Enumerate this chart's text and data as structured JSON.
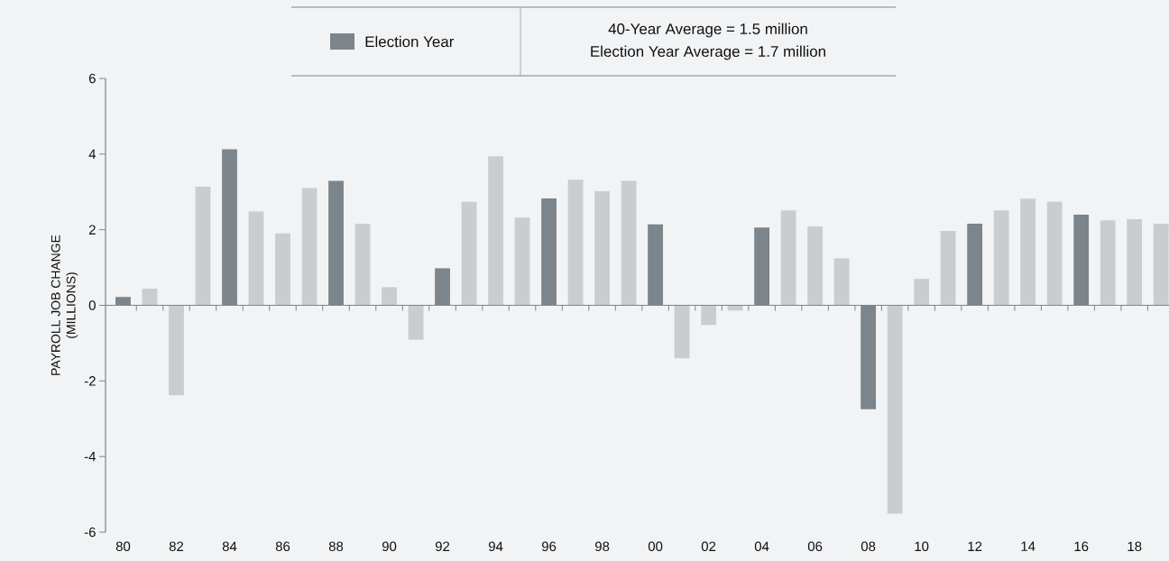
{
  "chart_data": {
    "type": "bar",
    "ylabel": "PAYROLL JOB CHANGE (MILLIONS)",
    "categories": [
      "80",
      null,
      "82",
      null,
      "84",
      null,
      "86",
      null,
      "88",
      null,
      "90",
      null,
      "92",
      null,
      "94",
      null,
      "96",
      null,
      "98",
      null,
      "00",
      null,
      "02",
      null,
      "04",
      null,
      "06",
      null,
      "08",
      null,
      "10",
      null,
      "12",
      null,
      "14",
      null,
      "16",
      null,
      "18",
      null
    ],
    "series": [
      {
        "name": "Election Year",
        "color": "#7b858b",
        "values": [
          0.22,
          null,
          null,
          null,
          4.13,
          null,
          null,
          null,
          3.29,
          null,
          null,
          null,
          0.98,
          null,
          null,
          null,
          2.83,
          null,
          null,
          null,
          2.14,
          null,
          null,
          null,
          2.06,
          null,
          null,
          null,
          -2.75,
          null,
          null,
          null,
          2.16,
          null,
          null,
          null,
          2.4,
          null,
          null,
          null
        ]
      },
      {
        "color": "#cacdd0",
        "values": [
          null,
          0.44,
          -2.38,
          3.14,
          null,
          2.48,
          1.9,
          3.1,
          null,
          2.16,
          0.48,
          -0.91,
          null,
          2.74,
          3.94,
          2.32,
          null,
          3.32,
          3.02,
          3.29,
          null,
          -1.4,
          -0.52,
          -0.14,
          null,
          2.51,
          2.09,
          1.24,
          null,
          -5.51,
          0.7,
          1.97,
          null,
          2.51,
          2.82,
          2.74,
          null,
          2.25,
          2.28,
          2.16
        ]
      }
    ],
    "ylim": [
      -6,
      6
    ],
    "yticks": [
      -6,
      -4,
      -2,
      0,
      2,
      4,
      6
    ],
    "legend": "top",
    "annotations": [
      "40-Year Average = 1.5 million",
      "Election Year Average = 1.7 million"
    ]
  }
}
